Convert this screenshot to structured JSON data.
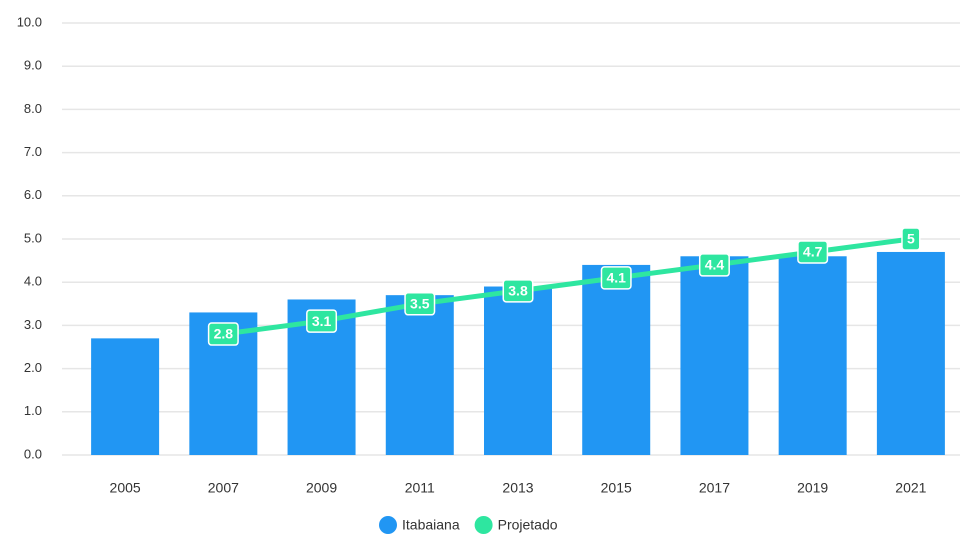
{
  "chart_data": {
    "type": "bar",
    "categories": [
      "2005",
      "2007",
      "2009",
      "2011",
      "2013",
      "2015",
      "2017",
      "2019",
      "2021"
    ],
    "series": [
      {
        "name": "Itabaiana",
        "type": "bar",
        "color": "#2196f3",
        "values": [
          2.7,
          3.3,
          3.6,
          3.7,
          3.9,
          4.4,
          4.6,
          4.6,
          4.7
        ]
      },
      {
        "name": "Projetado",
        "type": "line",
        "color": "#2ee6a0",
        "values": [
          null,
          2.8,
          3.1,
          3.5,
          3.8,
          4.1,
          4.4,
          4.7,
          5
        ]
      }
    ],
    "ylim": [
      0,
      10
    ],
    "yticks": [
      {
        "value": 0,
        "label": "0.0"
      },
      {
        "value": 1,
        "label": "1.0"
      },
      {
        "value": 2,
        "label": "2.0"
      },
      {
        "value": 3,
        "label": "3.0"
      },
      {
        "value": 4,
        "label": "4.0"
      },
      {
        "value": 5,
        "label": "5.0"
      },
      {
        "value": 6,
        "label": "6.0"
      },
      {
        "value": 7,
        "label": "7.0"
      },
      {
        "value": 8,
        "label": "8.0"
      },
      {
        "value": 9,
        "label": "9.0"
      },
      {
        "value": 10,
        "label": "10.0"
      }
    ],
    "grid": true,
    "legend": "bottom"
  }
}
